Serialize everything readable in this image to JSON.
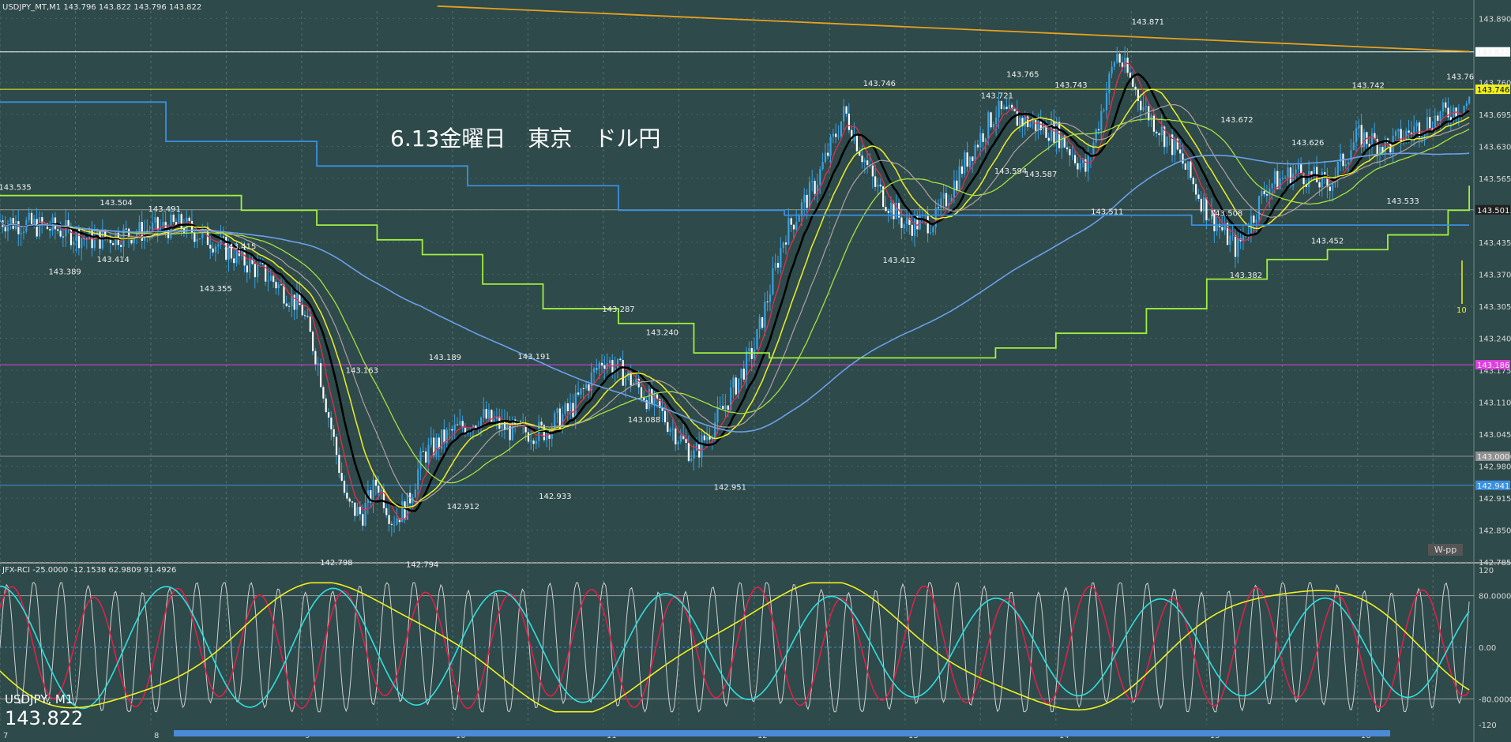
{
  "header": {
    "price_info": "USDJPY_MT,M1  143.796 143.822 143.796 143.822",
    "indicator_info": "JFX-RCI -25.0000 -12.1538 62.9809 91.4926"
  },
  "annotation": "6.13金曜日　東京　ドル円",
  "symbol_label": "USDJPY, M1",
  "last_price": "143.822",
  "w_pp_label": "W-pp",
  "marker_value": "10",
  "colors": {
    "background": "#2e4a4a",
    "candle": "#3aa0e0",
    "ema_black": "#000000",
    "ema_yellow": "#f0f020",
    "ema_red": "#e03050",
    "ema_green": "#a8e040",
    "ma_blue": "#6aa0e8",
    "ma_orange": "#e8a020",
    "ichimoku": "#b0a0a0",
    "step_green": "#a0f040",
    "step_blue": "#3a90e0",
    "rci_white": "#d0d0d0",
    "rci_red": "#e0204a",
    "rci_cyan": "#30e0e0",
    "rci_yellow": "#f0f020"
  },
  "chart_data": [
    {
      "type": "candlestick",
      "title": "",
      "symbol": "USDJPY",
      "timeframe": "M1",
      "x_ticks": [
        "7",
        "8",
        "9",
        "10",
        "11",
        "12",
        "13",
        "14",
        "15",
        "16"
      ],
      "y_ticks": [
        "143.890",
        "143.822",
        "143.760",
        "143.695",
        "143.630",
        "143.565",
        "143.501",
        "143.435",
        "143.370",
        "143.305",
        "143.240",
        "143.175",
        "143.110",
        "143.045",
        "143.000",
        "142.980",
        "142.941",
        "142.915",
        "142.850",
        "142.785"
      ],
      "ylim": [
        142.785,
        143.905
      ],
      "horizontal_lines": [
        {
          "value": 143.822,
          "label": "143.822",
          "color": "#ffffff"
        },
        {
          "value": 143.746,
          "label": "143.746",
          "color": "#f0f020"
        },
        {
          "value": 143.501,
          "label": "143.501",
          "color": "#202020"
        },
        {
          "value": 143.186,
          "label": "143.186",
          "color": "#e040e0"
        },
        {
          "value": 143.0,
          "label": "143.000",
          "color": "#909090"
        },
        {
          "value": 142.941,
          "label": "142.941",
          "color": "#3a90e0"
        }
      ],
      "price_points": [
        {
          "x": 0.0,
          "v": 143.48
        },
        {
          "x": 0.2,
          "v": 143.47
        },
        {
          "x": 0.4,
          "v": 143.46
        },
        {
          "x": 0.6,
          "v": 143.44
        },
        {
          "x": 0.8,
          "v": 143.45
        },
        {
          "x": 1.0,
          "v": 143.46
        },
        {
          "x": 1.2,
          "v": 143.47
        },
        {
          "x": 1.4,
          "v": 143.44
        },
        {
          "x": 1.6,
          "v": 143.4
        },
        {
          "x": 1.8,
          "v": 143.36
        },
        {
          "x": 2.0,
          "v": 143.3
        },
        {
          "x": 2.1,
          "v": 143.2
        },
        {
          "x": 2.2,
          "v": 143.05
        },
        {
          "x": 2.3,
          "v": 142.9
        },
        {
          "x": 2.4,
          "v": 142.88
        },
        {
          "x": 2.5,
          "v": 142.95
        },
        {
          "x": 2.6,
          "v": 142.87
        },
        {
          "x": 2.7,
          "v": 142.9
        },
        {
          "x": 2.8,
          "v": 143.0
        },
        {
          "x": 3.0,
          "v": 143.05
        },
        {
          "x": 3.2,
          "v": 143.08
        },
        {
          "x": 3.4,
          "v": 143.05
        },
        {
          "x": 3.6,
          "v": 143.05
        },
        {
          "x": 3.8,
          "v": 143.1
        },
        {
          "x": 4.0,
          "v": 143.2
        },
        {
          "x": 4.2,
          "v": 143.15
        },
        {
          "x": 4.4,
          "v": 143.08
        },
        {
          "x": 4.6,
          "v": 143.0
        },
        {
          "x": 4.8,
          "v": 143.1
        },
        {
          "x": 5.0,
          "v": 143.22
        },
        {
          "x": 5.2,
          "v": 143.45
        },
        {
          "x": 5.4,
          "v": 143.55
        },
        {
          "x": 5.6,
          "v": 143.7
        },
        {
          "x": 5.8,
          "v": 143.55
        },
        {
          "x": 6.0,
          "v": 143.47
        },
        {
          "x": 6.2,
          "v": 143.48
        },
        {
          "x": 6.4,
          "v": 143.6
        },
        {
          "x": 6.6,
          "v": 143.7
        },
        {
          "x": 6.8,
          "v": 143.68
        },
        {
          "x": 7.0,
          "v": 143.66
        },
        {
          "x": 7.2,
          "v": 143.58
        },
        {
          "x": 7.4,
          "v": 143.82
        },
        {
          "x": 7.6,
          "v": 143.7
        },
        {
          "x": 7.8,
          "v": 143.62
        },
        {
          "x": 8.0,
          "v": 143.5
        },
        {
          "x": 8.2,
          "v": 143.42
        },
        {
          "x": 8.4,
          "v": 143.55
        },
        {
          "x": 8.6,
          "v": 143.58
        },
        {
          "x": 8.8,
          "v": 143.55
        },
        {
          "x": 9.0,
          "v": 143.65
        },
        {
          "x": 9.2,
          "v": 143.63
        },
        {
          "x": 9.4,
          "v": 143.67
        },
        {
          "x": 9.6,
          "v": 143.7
        },
        {
          "x": 9.74,
          "v": 143.72
        }
      ],
      "data_labels": [
        {
          "x": 0.1,
          "v": 143.535,
          "text": "143.535",
          "pos": "above"
        },
        {
          "x": 0.43,
          "v": 143.389,
          "text": "143.389",
          "pos": "below"
        },
        {
          "x": 0.77,
          "v": 143.504,
          "text": "143.504",
          "pos": "above"
        },
        {
          "x": 0.75,
          "v": 143.414,
          "text": "143.414",
          "pos": "below"
        },
        {
          "x": 1.09,
          "v": 143.491,
          "text": "143.491",
          "pos": "above"
        },
        {
          "x": 1.43,
          "v": 143.355,
          "text": "143.355",
          "pos": "below"
        },
        {
          "x": 1.59,
          "v": 143.415,
          "text": "143.415",
          "pos": "above"
        },
        {
          "x": 2.4,
          "v": 143.163,
          "text": "143.163",
          "pos": "above"
        },
        {
          "x": 2.23,
          "v": 142.798,
          "text": "142.798",
          "pos": "below"
        },
        {
          "x": 2.95,
          "v": 143.189,
          "text": "143.189",
          "pos": "above"
        },
        {
          "x": 3.07,
          "v": 142.912,
          "text": "142.912",
          "pos": "below"
        },
        {
          "x": 2.8,
          "v": 142.794,
          "text": "142.794",
          "pos": "below"
        },
        {
          "x": 3.54,
          "v": 143.191,
          "text": "143.191",
          "pos": "above"
        },
        {
          "x": 3.68,
          "v": 142.933,
          "text": "142.933",
          "pos": "below"
        },
        {
          "x": 4.1,
          "v": 143.287,
          "text": "143.287",
          "pos": "above"
        },
        {
          "x": 4.39,
          "v": 143.24,
          "text": "143.240",
          "pos": "above"
        },
        {
          "x": 4.27,
          "v": 143.088,
          "text": "143.088",
          "pos": "below"
        },
        {
          "x": 4.84,
          "v": 142.951,
          "text": "142.951",
          "pos": "below"
        },
        {
          "x": 5.83,
          "v": 143.746,
          "text": "143.746",
          "pos": "above"
        },
        {
          "x": 5.96,
          "v": 143.412,
          "text": "143.412",
          "pos": "below"
        },
        {
          "x": 6.61,
          "v": 143.721,
          "text": "143.721",
          "pos": "above"
        },
        {
          "x": 6.78,
          "v": 143.765,
          "text": "143.765",
          "pos": "above"
        },
        {
          "x": 6.7,
          "v": 143.594,
          "text": "143.594",
          "pos": "below"
        },
        {
          "x": 6.9,
          "v": 143.587,
          "text": "143.587",
          "pos": "below"
        },
        {
          "x": 7.1,
          "v": 143.743,
          "text": "143.743",
          "pos": "above"
        },
        {
          "x": 7.34,
          "v": 143.511,
          "text": "143.511",
          "pos": "below"
        },
        {
          "x": 7.61,
          "v": 143.871,
          "text": "143.871",
          "pos": "above"
        },
        {
          "x": 8.2,
          "v": 143.672,
          "text": "143.672",
          "pos": "above"
        },
        {
          "x": 8.13,
          "v": 143.508,
          "text": "143.508",
          "pos": "below"
        },
        {
          "x": 8.26,
          "v": 143.382,
          "text": "143.382",
          "pos": "below"
        },
        {
          "x": 8.67,
          "v": 143.626,
          "text": "143.626",
          "pos": "above"
        },
        {
          "x": 8.8,
          "v": 143.452,
          "text": "143.452",
          "pos": "below"
        },
        {
          "x": 9.07,
          "v": 143.742,
          "text": "143.742",
          "pos": "above"
        },
        {
          "x": 9.3,
          "v": 143.533,
          "text": "143.533",
          "pos": "below"
        },
        {
          "x": 9.68,
          "v": 143.76,
          "text": "143.76",
          "pos": "above"
        }
      ]
    },
    {
      "type": "line",
      "title": "JFX-RCI",
      "ylim": [
        -120,
        120
      ],
      "y_ticks": [
        "120",
        "80.0000",
        "0.00",
        "-80.0000",
        "-120"
      ],
      "levels": [
        80,
        0,
        -80
      ],
      "series": [
        {
          "color": "#d0d0d0",
          "period": 0.18,
          "amp": 95,
          "phase": 0.0
        },
        {
          "color": "#e0204a",
          "period": 0.55,
          "amp": 85,
          "phase": 0.7
        },
        {
          "color": "#30e0e0",
          "period": 1.1,
          "amp": 85,
          "phase": 1.6
        },
        {
          "color": "#f0f020",
          "period": 3.2,
          "amp": 95,
          "phase": 3.5
        }
      ]
    }
  ]
}
